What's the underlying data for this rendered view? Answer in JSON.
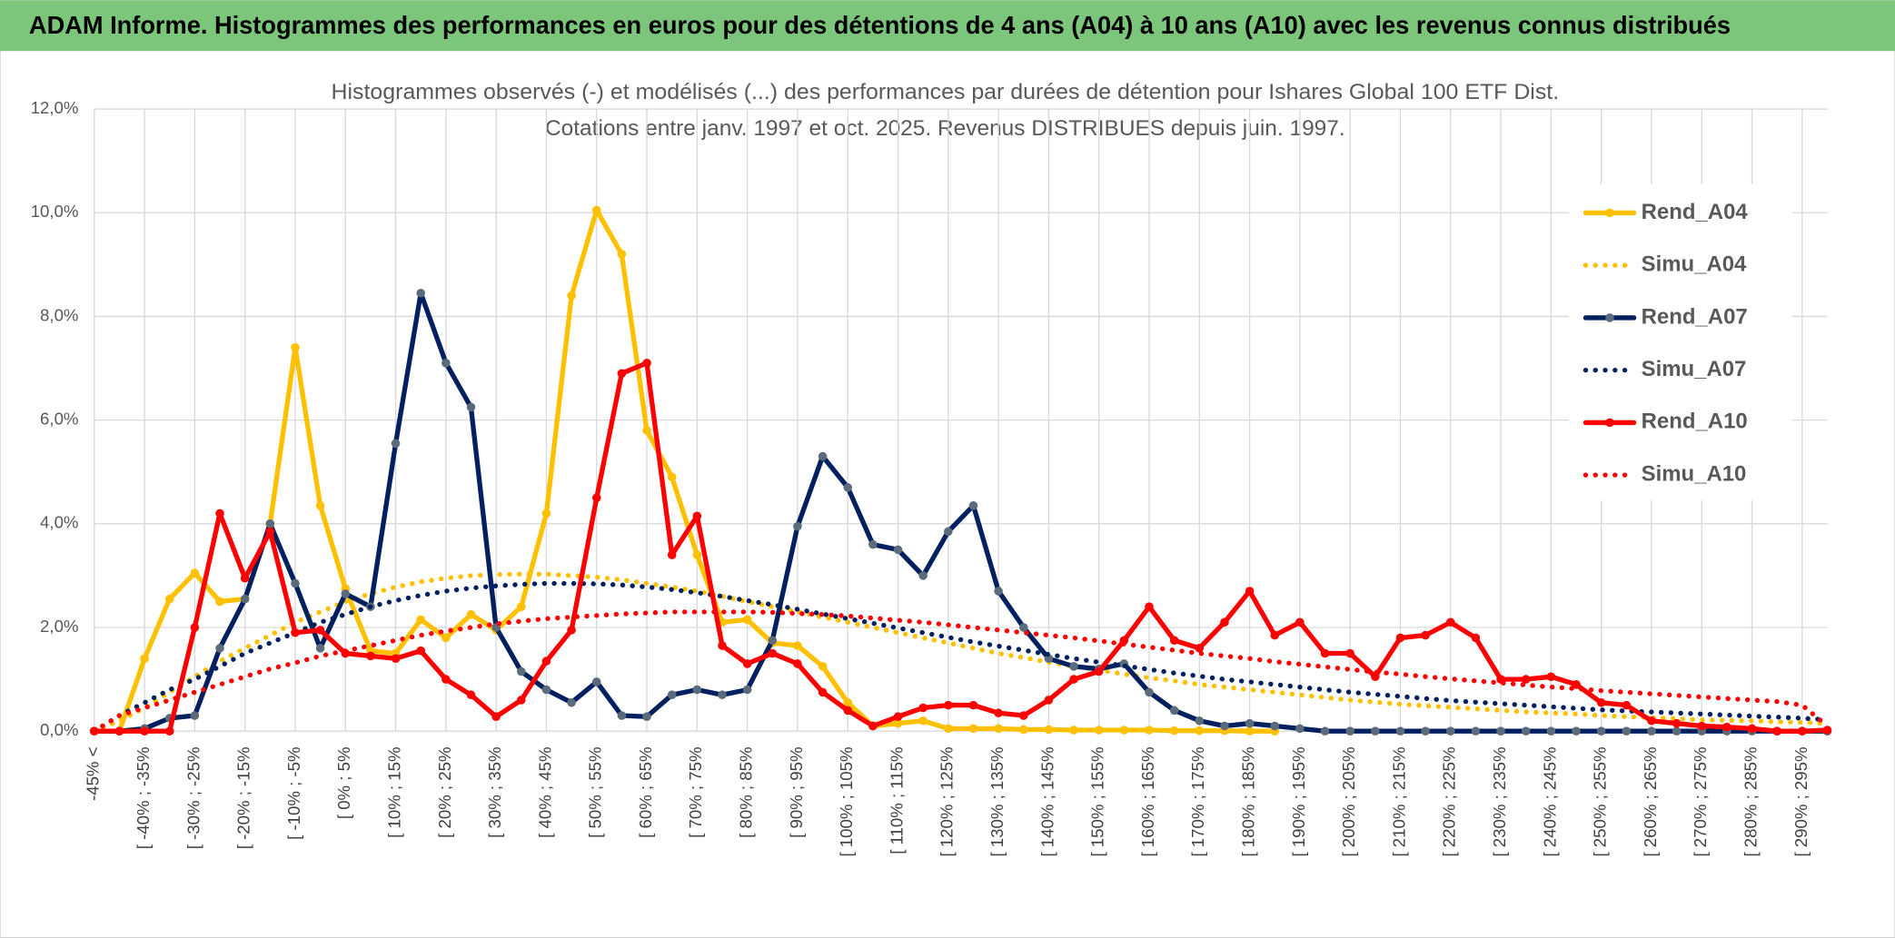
{
  "header": {
    "title": "ADAM Informe. Histogrammes des performances en euros pour des détentions de 4 ans (A04) à 10 ans (A10) avec les revenus connus distribués"
  },
  "chart_data": {
    "type": "line",
    "title": "Histogrammes observés (-) et modélisés (...) des performances par durées de détention pour Ishares Global 100 ETF Dist.",
    "subtitle": "Cotations entre janv. 1997 et oct. 2025. Revenus DISTRIBUES depuis juin. 1997.",
    "categories": [
      "-45% <",
      null,
      "[ -40% ; -35%",
      null,
      "[ -30% ; -25%",
      null,
      "[ -20% ; -15%",
      null,
      "[ -10% ; -5%",
      null,
      "[ 0% ; 5%",
      null,
      "[ 10% ; 15%",
      null,
      "[ 20% ; 25%",
      null,
      "[ 30% ; 35%",
      null,
      "[ 40% ; 45%",
      null,
      "[ 50% ; 55%",
      null,
      "[ 60% ; 65%",
      null,
      "[ 70% ; 75%",
      null,
      "[ 80% ; 85%",
      null,
      "[ 90% ; 95%",
      null,
      "[ 100% ; 105%",
      null,
      "[ 110% ; 115%",
      null,
      "[ 120% ; 125%",
      null,
      "[ 130% ; 135%",
      null,
      "[ 140% ; 145%",
      null,
      "[ 150% ; 155%",
      null,
      "[ 160% ; 165%",
      null,
      "[ 170% ; 175%",
      null,
      "[ 180% ; 185%",
      null,
      "[ 190% ; 195%",
      null,
      "[ 200% ; 205%",
      null,
      "[ 210% ; 215%",
      null,
      "[ 220% ; 225%",
      null,
      "[ 230% ; 235%",
      null,
      "[ 240% ; 245%",
      null,
      "[ 250% ; 255%",
      null,
      "[ 260% ; 265%",
      null,
      "[ 270% ; 275%",
      null,
      "[ 280% ; 285%",
      null,
      "[ 290% ; 295%",
      null
    ],
    "ylim": [
      0,
      12
    ],
    "yticks": [
      {
        "value": 0,
        "label": "0,0%"
      },
      {
        "value": 2,
        "label": "2,0%"
      },
      {
        "value": 4,
        "label": "4,0%"
      },
      {
        "value": 6,
        "label": "6,0%"
      },
      {
        "value": 8,
        "label": "8,0%"
      },
      {
        "value": 10,
        "label": "10,0%"
      },
      {
        "value": 12,
        "label": "12,0%"
      }
    ],
    "grid": true,
    "legend": "right",
    "series": [
      {
        "name": "Rend_A04",
        "color": "#ffc000",
        "marker_color": "#ffc000",
        "linestyle": "solid",
        "values": [
          0,
          0,
          1.4,
          2.55,
          3.05,
          2.5,
          2.55,
          4.0,
          7.4,
          4.35,
          2.75,
          1.55,
          1.5,
          2.15,
          1.8,
          2.25,
          1.95,
          2.4,
          4.2,
          8.4,
          10.05,
          9.2,
          5.8,
          4.9,
          3.4,
          2.1,
          2.15,
          1.7,
          1.65,
          1.25,
          0.55,
          0.1,
          0.15,
          0.2,
          0.05,
          0.05,
          0.05,
          0.03,
          0.03,
          0.02,
          0.02,
          0.02,
          0.02,
          0.01,
          0.01,
          0.01,
          0,
          0,
          null,
          null,
          null,
          null,
          null,
          null,
          null,
          null,
          null,
          null,
          null,
          null,
          null,
          null,
          null,
          null,
          null,
          null,
          null,
          null,
          null,
          null
        ]
      },
      {
        "name": "Simu_A04",
        "color": "#ffc000",
        "linestyle": "dotted",
        "values": [
          0,
          0.2,
          0.45,
          0.75,
          1.05,
          1.35,
          1.6,
          1.85,
          2.1,
          2.3,
          2.5,
          2.65,
          2.78,
          2.88,
          2.95,
          3.0,
          3.02,
          3.03,
          3.03,
          3.0,
          2.97,
          2.92,
          2.85,
          2.78,
          2.7,
          2.6,
          2.5,
          2.4,
          2.3,
          2.2,
          2.1,
          2.0,
          1.9,
          1.8,
          1.7,
          1.6,
          1.5,
          1.42,
          1.33,
          1.25,
          1.18,
          1.1,
          1.03,
          0.97,
          0.9,
          0.85,
          0.8,
          0.75,
          0.7,
          0.65,
          0.6,
          0.56,
          0.52,
          0.49,
          0.46,
          0.43,
          0.4,
          0.37,
          0.35,
          0.33,
          0.3,
          0.28,
          0.26,
          0.24,
          0.22,
          0.21,
          0.2,
          0.18,
          0.17,
          0.15
        ]
      },
      {
        "name": "Rend_A07",
        "color": "#002060",
        "marker_color": "#5b6b7c",
        "linestyle": "solid",
        "values": [
          0,
          0,
          0.05,
          0.25,
          0.3,
          1.6,
          2.55,
          4.0,
          2.85,
          1.6,
          2.65,
          2.4,
          5.55,
          8.45,
          7.1,
          6.25,
          2.0,
          1.15,
          0.8,
          0.55,
          0.95,
          0.3,
          0.28,
          0.7,
          0.8,
          0.7,
          0.8,
          1.75,
          3.95,
          5.3,
          4.7,
          3.6,
          3.5,
          3.0,
          3.85,
          4.35,
          2.7,
          2.0,
          1.4,
          1.25,
          1.2,
          1.3,
          0.75,
          0.4,
          0.2,
          0.1,
          0.15,
          0.1,
          0.05,
          0,
          0,
          0,
          0,
          0,
          0,
          0,
          0,
          0,
          0,
          0,
          0,
          0,
          0,
          0,
          0,
          0,
          0,
          0,
          0,
          0
        ]
      },
      {
        "name": "Simu_A07",
        "color": "#002060",
        "linestyle": "dotted",
        "values": [
          0,
          0.3,
          0.55,
          0.8,
          1.0,
          1.25,
          1.5,
          1.7,
          1.9,
          2.1,
          2.25,
          2.4,
          2.52,
          2.62,
          2.7,
          2.76,
          2.8,
          2.83,
          2.85,
          2.85,
          2.84,
          2.82,
          2.78,
          2.73,
          2.67,
          2.6,
          2.52,
          2.44,
          2.35,
          2.26,
          2.17,
          2.08,
          1.99,
          1.9,
          1.81,
          1.72,
          1.64,
          1.56,
          1.48,
          1.4,
          1.33,
          1.26,
          1.19,
          1.12,
          1.06,
          1.0,
          0.95,
          0.9,
          0.85,
          0.8,
          0.75,
          0.71,
          0.67,
          0.63,
          0.59,
          0.56,
          0.53,
          0.5,
          0.47,
          0.44,
          0.41,
          0.39,
          0.37,
          0.35,
          0.33,
          0.31,
          0.29,
          0.27,
          0.25,
          0.22
        ]
      },
      {
        "name": "Rend_A10",
        "color": "#ff0000",
        "marker_color": "#ff0000",
        "linestyle": "solid",
        "values": [
          0,
          0,
          0,
          0,
          2.0,
          4.2,
          2.95,
          3.85,
          1.9,
          1.95,
          1.5,
          1.45,
          1.4,
          1.55,
          1.0,
          0.7,
          0.28,
          0.6,
          1.35,
          1.95,
          4.5,
          6.9,
          7.1,
          3.4,
          4.15,
          1.65,
          1.3,
          1.5,
          1.3,
          0.75,
          0.4,
          0.1,
          0.28,
          0.45,
          0.5,
          0.5,
          0.35,
          0.3,
          0.6,
          1.0,
          1.15,
          1.75,
          2.4,
          1.75,
          1.6,
          2.1,
          2.7,
          1.85,
          2.1,
          1.5,
          1.5,
          1.05,
          1.8,
          1.85,
          2.1,
          1.8,
          1.0,
          1.0,
          1.05,
          0.9,
          0.55,
          0.5,
          0.2,
          0.15,
          0.1,
          0.08,
          0.05,
          0,
          0,
          0.02
        ]
      },
      {
        "name": "Simu_A10",
        "color": "#ff0000",
        "linestyle": "dotted",
        "values": [
          0,
          0.3,
          0.45,
          0.6,
          0.75,
          0.9,
          1.05,
          1.2,
          1.32,
          1.45,
          1.55,
          1.65,
          1.75,
          1.85,
          1.93,
          2.0,
          2.07,
          2.12,
          2.17,
          2.2,
          2.23,
          2.26,
          2.28,
          2.3,
          2.3,
          2.3,
          2.3,
          2.29,
          2.27,
          2.25,
          2.22,
          2.18,
          2.14,
          2.1,
          2.05,
          2.0,
          1.95,
          1.9,
          1.85,
          1.8,
          1.74,
          1.68,
          1.62,
          1.56,
          1.5,
          1.45,
          1.4,
          1.34,
          1.29,
          1.24,
          1.19,
          1.14,
          1.1,
          1.05,
          1.01,
          0.97,
          0.93,
          0.89,
          0.85,
          0.82,
          0.78,
          0.75,
          0.72,
          0.69,
          0.66,
          0.63,
          0.6,
          0.57,
          0.5,
          0.1
        ]
      }
    ]
  }
}
